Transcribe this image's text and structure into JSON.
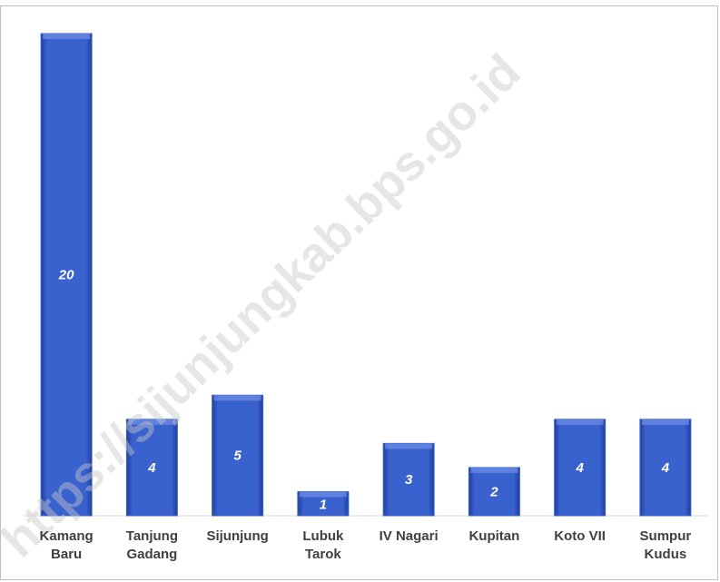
{
  "chart_data": {
    "type": "bar",
    "categories": [
      "Kamang\nBaru",
      "Tanjung\nGadang",
      "Sijunjung",
      "Lubuk\nTarok",
      "IV Nagari",
      "Kupitan",
      "Koto VII",
      "Sumpur\nKudus"
    ],
    "values": [
      20,
      4,
      5,
      1,
      3,
      2,
      4,
      4
    ],
    "color": "#3a62cf",
    "ylim": [
      0,
      20
    ],
    "watermark": "https://sijunjungkab.bps.go.id"
  }
}
